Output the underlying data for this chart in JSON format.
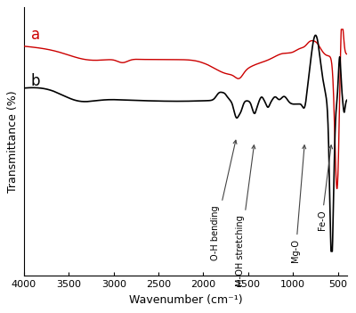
{
  "xlabel": "Wavenumber (cm⁻¹)",
  "ylabel": "Transmittance (%)",
  "color_a": "#cc0000",
  "color_b": "#000000",
  "background_color": "#ffffff",
  "linewidth_a": 1.0,
  "linewidth_b": 1.2,
  "xticks": [
    4000,
    3500,
    3000,
    2500,
    2000,
    1500,
    1000,
    500
  ],
  "xtick_labels": [
    "4000",
    "3500",
    "3000",
    "2500",
    "2000",
    "1500",
    "1000",
    "500"
  ]
}
